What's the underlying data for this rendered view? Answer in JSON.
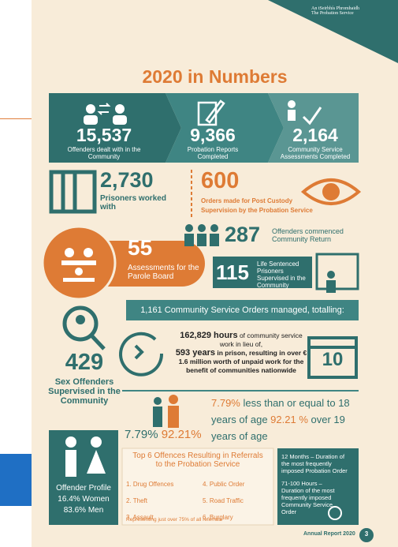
{
  "header": {
    "logo_irish": "An tSeirbhís Phromhaidh",
    "logo_english": "The Probation Service"
  },
  "title": "2020 in Numbers",
  "highlights": [
    {
      "number": "15,537",
      "label": "Offenders dealt with in the Community"
    },
    {
      "number": "9,366",
      "label": "Probation Reports Completed"
    },
    {
      "number": "2,164",
      "label": "Community Service Assessments Completed"
    }
  ],
  "prisoners": {
    "number": "2,730",
    "label": "Prisoners worked with"
  },
  "post_custody": {
    "number": "600",
    "label": "Orders made for Post Custody Supervision by the Probation Service"
  },
  "parole": {
    "number": "55",
    "label": "Assessments for the Parole Board"
  },
  "community_return": {
    "number": "287",
    "label": "Offenders commenced Community Return"
  },
  "life_sentenced": {
    "number": "115",
    "label": "Life Sentenced Prisoners Supervised in the Community"
  },
  "community_service": {
    "banner": "1,161 Community Service Orders managed, totalling:",
    "hours": "162,829 hours",
    "hours_text": "of community service work in lieu of,",
    "years": "593 years",
    "years_text": "in prison, resulting in over € 1.6 million worth of unpaid work for the benefit of communities nationwide",
    "calendar": "10"
  },
  "sex_offenders": {
    "number": "429",
    "label": "Sex Offenders Supervised in the Community"
  },
  "age": {
    "under_pct": "7.79%",
    "under_label": "less than or equal to 18 years of age",
    "over_pct": "92.21 %",
    "over_label": "over 19 years of age",
    "under_short": "7.79%",
    "over_short": "92.21%"
  },
  "profile": {
    "title": "Offender Profile",
    "women": "16.4% Women",
    "men": "83.6% Men"
  },
  "offences": {
    "title": "Top 6 Offences Resulting in Referrals to the Probation Service",
    "items": [
      "1. Drug Offences",
      "2. Theft",
      "3. Assault",
      "4. Public Order",
      "5. Road Traffic",
      "6. Burglary"
    ],
    "note": "Representing just over 75% of all referrals"
  },
  "durations": [
    "12 Months – Duration of the most frequently imposed Probation Order",
    "71-100 Hours – Duration of the most frequently imposed Community Service Order"
  ],
  "footer": {
    "report": "Annual Report 2020",
    "page": "3"
  }
}
